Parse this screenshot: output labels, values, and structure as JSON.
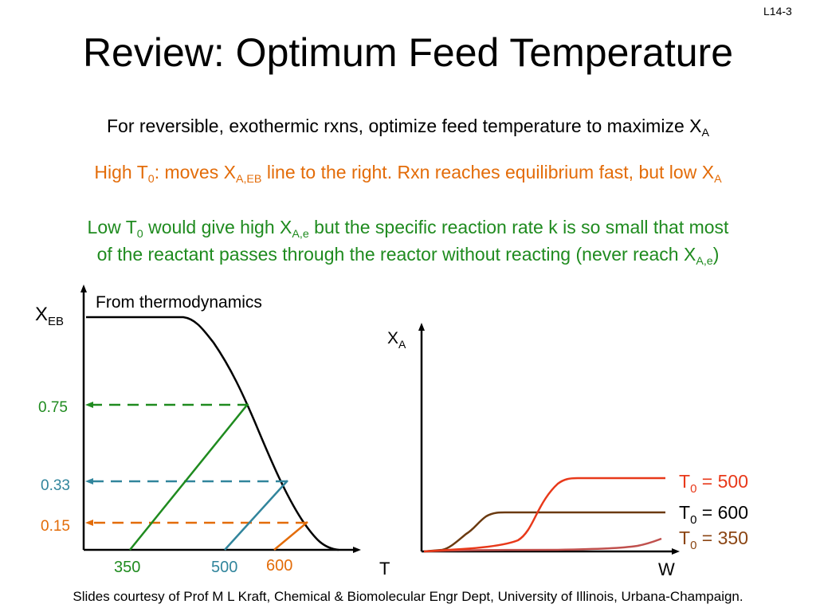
{
  "slide_number": "L14-3",
  "title": "Review: Optimum Feed Temperature",
  "intro": {
    "text": "For reversible, exothermic rxns, optimize feed temperature to maximize X",
    "sub": "A"
  },
  "high_t0": {
    "p1": "High T",
    "s1": "0",
    "p2": ": moves X",
    "s2": "A,EB",
    "p3": " line to the right.  Rxn reaches equilibrium fast, but low X",
    "s3": "A"
  },
  "low_t0": {
    "p1": "Low T",
    "s1": "0",
    "p2": " would give high X",
    "s2": "A,e",
    "p3": " but the specific reaction rate k is so small that most",
    "line2_text": "of the reactant passes through the reactor without reacting (never reach X",
    "line2_sub": "A,e",
    "line2_end": ")"
  },
  "colors": {
    "orange": "#E36C09",
    "green": "#1F8B1F",
    "teal": "#31859C",
    "red": "#E8391A",
    "brown": "#6B3A10",
    "pink": "#C0504D"
  },
  "left_plot": {
    "y_label": "X",
    "y_label_sub": "EB",
    "x_label": "T",
    "curve_label": "From thermodynamics",
    "y_ticks": [
      {
        "label": "0.75",
        "color": "#1F8B1F"
      },
      {
        "label": "0.33",
        "color": "#31859C"
      },
      {
        "label": "0.15",
        "color": "#E36C09"
      }
    ],
    "x_ticks": [
      {
        "label": "350",
        "color": "#1F8B1F"
      },
      {
        "label": "500",
        "color": "#31859C"
      },
      {
        "label": "600",
        "color": "#E36C09"
      }
    ]
  },
  "right_plot": {
    "y_label": "X",
    "y_label_sub": "A",
    "x_label": "W",
    "curves": [
      {
        "prefix": "T",
        "sub": "0",
        "eq": " = 500",
        "color": "#E8391A"
      },
      {
        "prefix": "T",
        "sub": "0",
        "eq": " = 600",
        "color": "#000000"
      },
      {
        "prefix": "T",
        "sub": "0",
        "eq": " = 350",
        "color": "#8B4513"
      }
    ]
  },
  "footer": "Slides courtesy of Prof M L Kraft, Chemical & Biomolecular Engr Dept, University of Illinois, Urbana-Champaign."
}
